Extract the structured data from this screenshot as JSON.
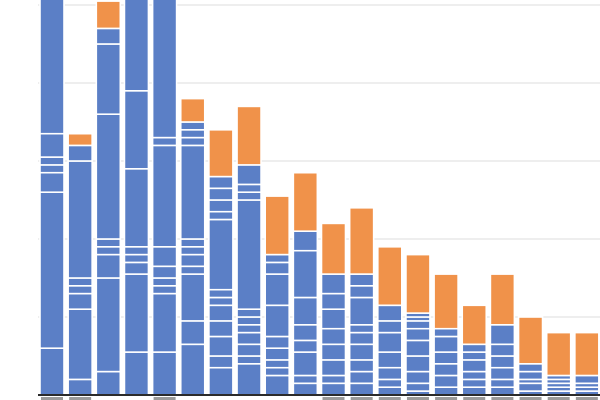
{
  "chart_data": {
    "type": "bar",
    "stacked": true,
    "title": "",
    "xlabel": "",
    "ylabel": "",
    "grid": true,
    "legend": "none",
    "ylim": [
      0,
      100
    ],
    "category_count": 20,
    "colors": {
      "existing": "#5b7fc6",
      "added": "#f0924a",
      "gridline": "#dcdcdc",
      "baseline": "#2b2b2b",
      "tick": "#9a9a9a"
    },
    "bars": [
      {
        "segments": [
          12,
          40,
          5,
          2,
          2,
          6,
          37
        ],
        "top_orange": 0
      },
      {
        "segments": [
          4,
          18,
          4,
          2,
          2,
          30,
          4
        ],
        "top_orange": 3
      },
      {
        "segments": [
          6,
          24,
          6,
          2,
          2,
          32,
          18,
          4
        ],
        "top_orange": 7
      },
      {
        "segments": [
          11,
          20,
          3,
          2,
          2,
          20,
          20,
          25
        ],
        "top_orange": 0
      },
      {
        "segments": [
          11,
          15,
          2,
          2,
          3,
          5,
          26,
          2,
          40
        ],
        "top_orange": 0
      },
      {
        "segments": [
          13,
          6,
          12,
          2,
          3,
          2,
          2,
          24,
          2,
          2,
          2
        ],
        "top_orange": 6
      },
      {
        "segments": [
          7,
          3,
          5,
          4,
          4,
          2,
          2,
          18,
          2,
          3,
          3,
          3
        ],
        "top_orange": 12
      },
      {
        "segments": [
          8,
          2,
          3,
          3,
          2,
          2,
          2,
          28,
          2,
          2,
          5
        ],
        "top_orange": 15
      },
      {
        "segments": [
          5,
          2,
          2,
          3,
          3,
          8,
          8,
          3,
          2
        ],
        "top_orange": 15
      },
      {
        "segments": [
          3,
          2,
          6,
          3,
          4,
          7,
          12,
          5
        ],
        "top_orange": 15
      },
      {
        "segments": [
          3,
          2,
          4,
          4,
          4,
          5,
          4,
          5
        ],
        "top_orange": 13
      },
      {
        "segments": [
          3,
          3,
          3,
          4,
          3,
          2,
          7,
          3,
          3
        ],
        "top_orange": 17
      },
      {
        "segments": [
          2,
          2,
          3,
          4,
          5,
          3,
          4
        ],
        "top_orange": 15
      },
      {
        "segments": [
          1,
          2,
          3,
          4,
          4,
          3,
          2,
          1,
          1
        ],
        "top_orange": 15
      },
      {
        "segments": [
          2,
          3,
          3,
          3,
          4,
          2
        ],
        "top_orange": 14
      },
      {
        "segments": [
          2,
          2,
          2,
          3,
          2,
          2
        ],
        "top_orange": 10
      },
      {
        "segments": [
          2,
          2,
          3,
          3,
          3,
          5
        ],
        "top_orange": 13
      },
      {
        "segments": [
          1,
          2,
          1,
          2,
          2
        ],
        "top_orange": 12
      },
      {
        "segments": [
          1,
          1,
          1,
          1,
          1
        ],
        "top_orange": 11
      },
      {
        "segments": [
          1,
          1,
          1,
          2
        ],
        "top_orange": 11
      }
    ]
  }
}
